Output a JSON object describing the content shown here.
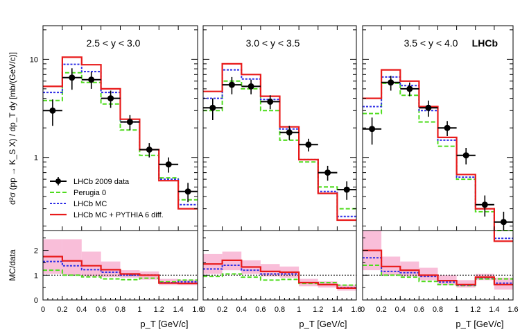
{
  "chart_data": {
    "type": "line",
    "y_axis_label_top": "d²σ (pp → K_S X) / dp_T dy  [mb/(GeV/c)]",
    "y_axis_label_ratio": "MC/data",
    "x_axis_label": "p_T [GeV/c]",
    "y_ticks_top": [
      "10",
      "1"
    ],
    "y_ticks_ratio": [
      "2",
      "1",
      "0"
    ],
    "x_ticks": [
      "0",
      "0.2",
      "0.4",
      "0.6",
      "0.8",
      "1",
      "1.2",
      "1.4",
      "1.6"
    ],
    "logo": "LHCb",
    "colors": {
      "data": "#000000",
      "perugia0": "#4fdc1e",
      "lhcbmc": "#2f2fe6",
      "pythia6diff": "#e81a1a",
      "band": "#f7a8cc"
    },
    "legend": [
      {
        "label": "LHCb 2009 data",
        "key": "data"
      },
      {
        "label": "Perugia 0",
        "key": "perugia0"
      },
      {
        "label": "LHCb MC",
        "key": "lhcbmc"
      },
      {
        "label": "LHCb MC + PYTHIA 6 diff.",
        "key": "pythia6diff"
      }
    ],
    "bin_edges": [
      0.0,
      0.2,
      0.4,
      0.6,
      0.8,
      1.0,
      1.2,
      1.4,
      1.6
    ],
    "top_ylim": [
      0.18,
      22
    ],
    "ratio_ylim": [
      0,
      2.8
    ],
    "panels": [
      {
        "label": "2.5 < y < 3.0",
        "data": {
          "x": [
            0.1,
            0.3,
            0.5,
            0.7,
            0.9,
            1.1,
            1.3,
            1.5
          ],
          "y": [
            3.0,
            6.5,
            6.2,
            4.0,
            2.3,
            1.2,
            0.85,
            0.45
          ],
          "err": [
            0.9,
            1.6,
            1.2,
            0.8,
            0.4,
            0.2,
            0.15,
            0.1
          ]
        },
        "perugia0": [
          3.8,
          7.3,
          5.8,
          3.5,
          1.9,
          1.05,
          0.62,
          0.37
        ],
        "lhcbmc": [
          4.6,
          8.9,
          7.5,
          4.6,
          2.3,
          1.2,
          0.6,
          0.33
        ],
        "pythia6diff": [
          5.3,
          10.5,
          8.8,
          5.0,
          2.45,
          1.2,
          0.58,
          0.3
        ],
        "ratio_perugia0": [
          1.2,
          1.0,
          0.93,
          0.85,
          0.82,
          0.88,
          0.73,
          0.8
        ],
        "ratio_lhcbmc": [
          1.55,
          1.38,
          1.22,
          1.12,
          1.0,
          1.0,
          0.7,
          0.73
        ],
        "ratio_pythia6diff": [
          1.75,
          1.58,
          1.38,
          1.22,
          1.05,
          1.0,
          0.68,
          0.67
        ],
        "ratio_band_hi": [
          2.45,
          2.45,
          1.95,
          1.55,
          1.2,
          1.15,
          0.85,
          0.82
        ],
        "ratio_band_lo": [
          1.05,
          1.0,
          0.95,
          0.92,
          0.9,
          0.82,
          0.6,
          0.6
        ]
      },
      {
        "label": "3.0 < y < 3.5",
        "data": {
          "x": [
            0.1,
            0.3,
            0.5,
            0.7,
            0.9,
            1.1,
            1.3,
            1.5
          ],
          "y": [
            3.2,
            5.5,
            5.3,
            3.7,
            1.8,
            1.35,
            0.7,
            0.47
          ],
          "err": [
            0.8,
            1.1,
            0.9,
            0.6,
            0.3,
            0.2,
            0.12,
            0.1
          ]
        },
        "perugia0": [
          3.0,
          6.0,
          5.0,
          3.0,
          1.5,
          0.9,
          0.5,
          0.3
        ],
        "lhcbmc": [
          4.0,
          7.8,
          6.3,
          3.9,
          1.95,
          0.95,
          0.45,
          0.25
        ],
        "pythia6diff": [
          4.7,
          9.0,
          7.0,
          4.2,
          2.05,
          0.95,
          0.43,
          0.23
        ],
        "ratio_perugia0": [
          0.95,
          1.05,
          0.92,
          0.8,
          0.83,
          0.67,
          0.7,
          0.6
        ],
        "ratio_lhcbmc": [
          1.25,
          1.4,
          1.2,
          1.05,
          1.05,
          0.7,
          0.62,
          0.5
        ],
        "ratio_pythia6diff": [
          1.45,
          1.6,
          1.33,
          1.15,
          1.12,
          0.7,
          0.62,
          0.48
        ],
        "ratio_band_hi": [
          1.85,
          1.95,
          1.6,
          1.45,
          1.35,
          0.85,
          0.75,
          0.62
        ],
        "ratio_band_lo": [
          1.05,
          1.2,
          1.05,
          0.95,
          0.9,
          0.55,
          0.5,
          0.38
        ]
      },
      {
        "label": "3.5 < y < 4.0",
        "data": {
          "x": [
            0.1,
            0.3,
            0.5,
            0.7,
            0.9,
            1.1,
            1.3,
            1.5
          ],
          "y": [
            1.95,
            5.8,
            5.0,
            3.2,
            2.0,
            1.05,
            0.33,
            0.22
          ],
          "err": [
            0.6,
            1.0,
            0.8,
            0.6,
            0.35,
            0.2,
            0.08,
            0.06
          ]
        },
        "perugia0": [
          2.8,
          5.7,
          4.3,
          2.3,
          1.3,
          0.6,
          0.28,
          0.18
        ],
        "lhcbmc": [
          3.3,
          6.6,
          5.4,
          3.0,
          1.5,
          0.63,
          0.3,
          0.15
        ],
        "pythia6diff": [
          4.0,
          7.8,
          6.0,
          3.3,
          1.6,
          0.67,
          0.3,
          0.14
        ],
        "ratio_perugia0": [
          1.4,
          1.0,
          0.92,
          0.75,
          0.62,
          0.58,
          0.85,
          0.85
        ],
        "ratio_lhcbmc": [
          1.7,
          1.15,
          1.1,
          0.95,
          0.72,
          0.6,
          0.9,
          0.68
        ],
        "ratio_pythia6diff": [
          2.0,
          1.35,
          1.2,
          1.0,
          0.78,
          0.62,
          0.92,
          0.62
        ],
        "ratio_band_hi": [
          2.8,
          1.75,
          1.55,
          1.3,
          1.0,
          0.8,
          1.05,
          0.9
        ],
        "ratio_band_lo": [
          1.2,
          1.0,
          0.95,
          0.8,
          0.6,
          0.5,
          0.8,
          0.42
        ]
      }
    ]
  }
}
